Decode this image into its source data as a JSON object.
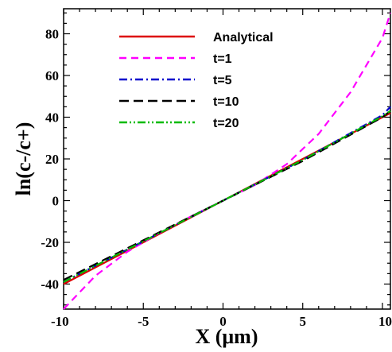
{
  "chart_data": {
    "type": "line",
    "xlabel": "X (μm)",
    "ylabel": "ln(c-/c+)",
    "xlim": [
      -10,
      10.5
    ],
    "ylim": [
      -52,
      92
    ],
    "xticks": [
      "-10",
      "-5",
      "0",
      "5",
      "10"
    ],
    "xtick_values": [
      -10,
      -5,
      0,
      5,
      10
    ],
    "yticks": [
      "-40",
      "-20",
      "0",
      "20",
      "40",
      "60",
      "80"
    ],
    "ytick_values": [
      -40,
      -20,
      0,
      20,
      40,
      60,
      80
    ],
    "grid": false,
    "legend_position": "top-left",
    "series": [
      {
        "name": "Analytical",
        "color": "#dd0000",
        "dash": "solid",
        "x": [
          -10,
          -5,
          0,
          5,
          10,
          10.5
        ],
        "y": [
          -40,
          -20,
          0,
          20,
          40,
          42
        ]
      },
      {
        "name": "t=1",
        "color": "#ff00ff",
        "dash": "dashed",
        "x": [
          -10,
          -8,
          -6,
          -4,
          -2,
          0,
          2,
          4,
          6,
          8,
          10,
          10.5
        ],
        "y": [
          -52,
          -36,
          -24.5,
          -15.5,
          -7.5,
          0,
          7.5,
          17.5,
          32,
          52,
          78,
          90
        ]
      },
      {
        "name": "t=5",
        "color": "#0000cc",
        "dash": "dashdot",
        "x": [
          -10,
          -5,
          0,
          5,
          10,
          10.5
        ],
        "y": [
          -39,
          -19.5,
          0,
          19.5,
          41,
          45
        ]
      },
      {
        "name": "t=10",
        "color": "#000000",
        "dash": "longdash",
        "x": [
          -10,
          -5,
          0,
          5,
          10,
          10.5
        ],
        "y": [
          -38,
          -19,
          0,
          19,
          40,
          43
        ]
      },
      {
        "name": "t=20",
        "color": "#00bb00",
        "dash": "dashdotdot",
        "x": [
          -10,
          -5,
          0,
          5,
          10,
          10.5
        ],
        "y": [
          -39,
          -19.5,
          0,
          19.5,
          40.5,
          43
        ]
      }
    ]
  }
}
